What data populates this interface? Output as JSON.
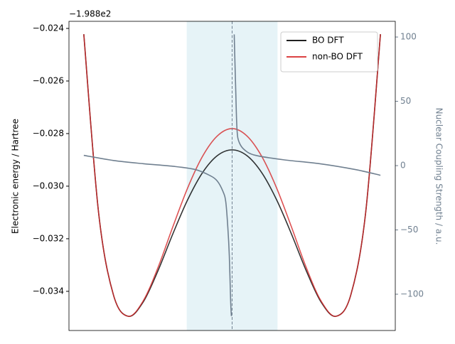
{
  "chart_data": {
    "type": "line",
    "y_offset_label": "−1.988e2",
    "ylabel": "Electronic energy / Hartree",
    "y2label": "Nuclear Coupling Strength / a.u.",
    "x": [
      -1.0,
      -0.9,
      -0.8,
      -0.7,
      -0.6,
      -0.5,
      -0.4,
      -0.3,
      -0.2,
      -0.1,
      0.0,
      0.1,
      0.2,
      0.3,
      0.4,
      0.5,
      0.6,
      0.7,
      0.8,
      0.9,
      1.0
    ],
    "xlim": [
      -1.1,
      1.1
    ],
    "ylim": [
      -0.03549,
      -0.02373
    ],
    "yticks": [
      {
        "value": -0.034,
        "label": "−0.034"
      },
      {
        "value": -0.032,
        "label": "−0.032"
      },
      {
        "value": -0.03,
        "label": "−0.030"
      },
      {
        "value": -0.028,
        "label": "−0.028"
      },
      {
        "value": -0.026,
        "label": "−0.026"
      },
      {
        "value": -0.024,
        "label": "−0.024"
      }
    ],
    "y2lim": [
      -128.2,
      112.2
    ],
    "y2ticks": [
      {
        "value": -100,
        "label": "−100"
      },
      {
        "value": -50,
        "label": "−50"
      },
      0,
      50,
      100
    ],
    "y2color": "#708090",
    "shaded_region": {
      "xmin": -0.306,
      "xmax": 0.306,
      "color": "#add8e6",
      "opacity": 0.3
    },
    "vline": {
      "x": 0,
      "color": "#708090"
    },
    "legend": "upper right",
    "series": [
      {
        "name": "BO DFT",
        "color": "#000000",
        "values": [
          -0.02422,
          -0.03102,
          -0.03414,
          -0.03495,
          -0.03441,
          -0.03322,
          -0.03182,
          -0.03052,
          -0.02949,
          -0.02884,
          -0.02862,
          -0.02884,
          -0.02949,
          -0.03052,
          -0.03182,
          -0.03322,
          -0.03441,
          -0.03495,
          -0.03414,
          -0.03102,
          -0.02422
        ]
      },
      {
        "name": "non-BO DFT",
        "color": "#d62728",
        "values": [
          -0.02422,
          -0.03102,
          -0.03414,
          -0.03495,
          -0.03437,
          -0.0331,
          -0.03155,
          -0.03007,
          -0.02887,
          -0.02809,
          -0.02781,
          -0.02809,
          -0.02887,
          -0.03007,
          -0.03155,
          -0.0331,
          -0.03437,
          -0.03495,
          -0.03414,
          -0.03102,
          -0.02422
        ]
      },
      {
        "axis": "y2",
        "color": "#708090",
        "x": [
          -1.0,
          -0.8,
          -0.6,
          -0.4,
          -0.25,
          -0.15,
          -0.1,
          -0.062,
          -0.043,
          -0.029,
          -0.019,
          -0.01,
          -0.005,
          null,
          0.014,
          0.024,
          0.033,
          0.048,
          0.086,
          0.158,
          0.349,
          0.589,
          0.828,
          1.0
        ],
        "values": [
          8,
          4,
          1.5,
          -0.5,
          -3,
          -7.7,
          -12,
          -20,
          -28,
          -48,
          -70,
          -105,
          -117,
          null,
          102,
          60,
          28,
          18,
          12,
          8,
          4.5,
          1.5,
          -3,
          -7.5
        ]
      }
    ]
  }
}
